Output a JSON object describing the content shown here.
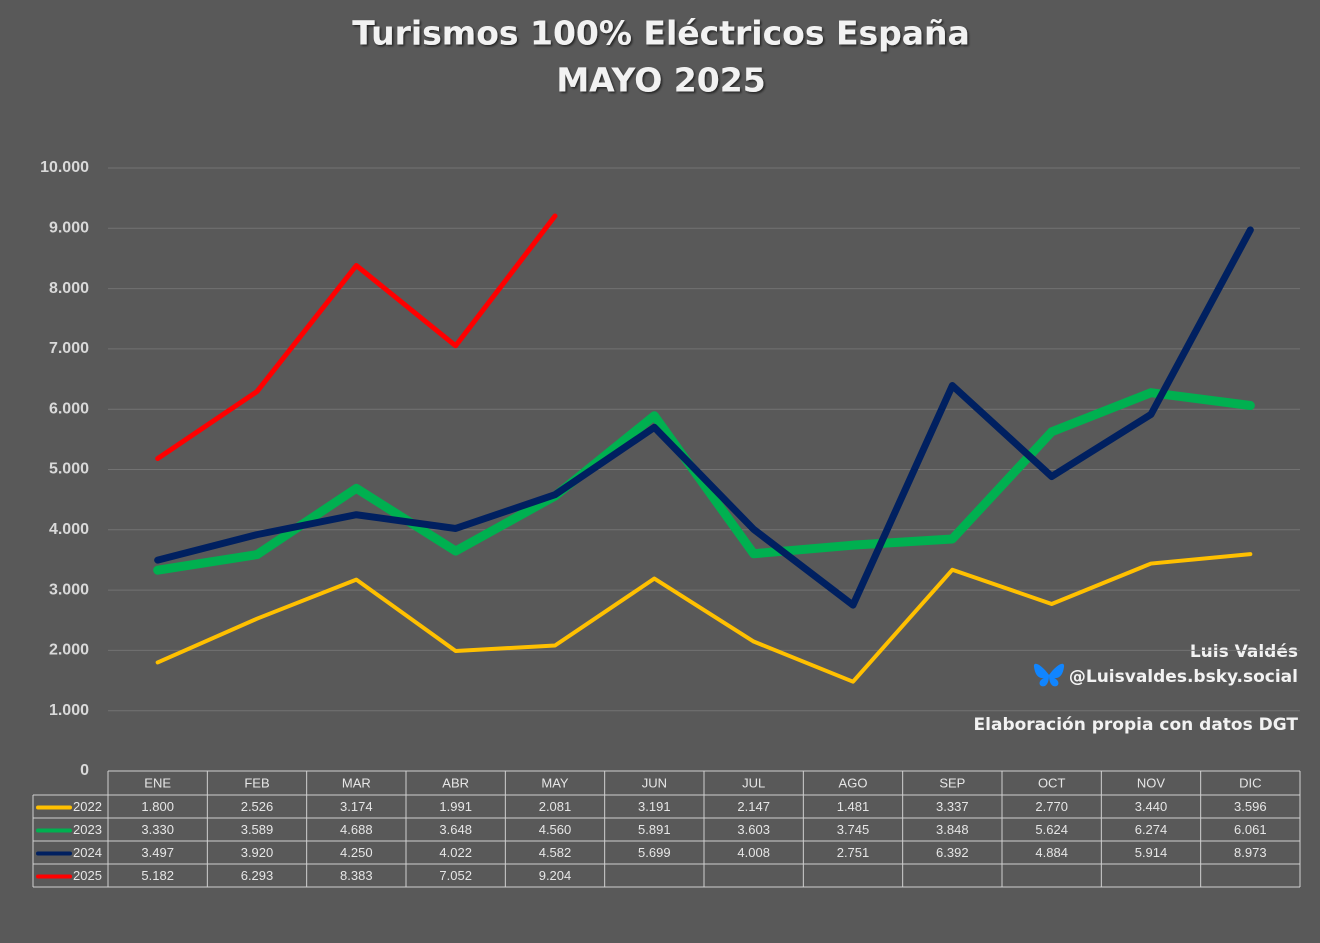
{
  "chart_data": {
    "type": "line",
    "title": "Turismos 100% Eléctricos España",
    "subtitle": "MAYO 2025",
    "categories": [
      "ENE",
      "FEB",
      "MAR",
      "ABR",
      "MAY",
      "JUN",
      "JUL",
      "AGO",
      "SEP",
      "OCT",
      "NOV",
      "DIC"
    ],
    "series": [
      {
        "name": "2022",
        "color": "#ffc000",
        "values": [
          1800,
          2526,
          3174,
          1991,
          2081,
          3191,
          2147,
          1481,
          3337,
          2770,
          3440,
          3596
        ],
        "value_labels": [
          "1.800",
          "2.526",
          "3.174",
          "1.991",
          "2.081",
          "3.191",
          "2.147",
          "1.481",
          "3.337",
          "2.770",
          "3.440",
          "3.596"
        ]
      },
      {
        "name": "2023",
        "color": "#00b050",
        "values": [
          3330,
          3589,
          4688,
          3648,
          4560,
          5891,
          3603,
          3745,
          3848,
          5624,
          6274,
          6061
        ],
        "value_labels": [
          "3.330",
          "3.589",
          "4.688",
          "3.648",
          "4.560",
          "5.891",
          "3.603",
          "3.745",
          "3.848",
          "5.624",
          "6.274",
          "6.061"
        ]
      },
      {
        "name": "2024",
        "color": "#002060",
        "values": [
          3497,
          3920,
          4250,
          4022,
          4582,
          5699,
          4008,
          2751,
          6392,
          4884,
          5914,
          8973
        ],
        "value_labels": [
          "3.497",
          "3.920",
          "4.250",
          "4.022",
          "4.582",
          "5.699",
          "4.008",
          "2.751",
          "6.392",
          "4.884",
          "5.914",
          "8.973"
        ]
      },
      {
        "name": "2025",
        "color": "#ff0000",
        "values": [
          5182,
          6293,
          8383,
          7052,
          9204,
          null,
          null,
          null,
          null,
          null,
          null,
          null
        ],
        "value_labels": [
          "5.182",
          "6.293",
          "8.383",
          "7.052",
          "9.204",
          null,
          null,
          null,
          null,
          null,
          null,
          null
        ]
      }
    ],
    "ylim": [
      0,
      10000
    ],
    "yticks": [
      0,
      {
        "value": 1000,
        "label": "1.000"
      },
      {
        "value": 2000,
        "label": "2.000"
      },
      {
        "value": 3000,
        "label": "3.000"
      },
      {
        "value": 4000,
        "label": "4.000"
      },
      {
        "value": 5000,
        "label": "5.000"
      },
      {
        "value": 6000,
        "label": "6.000"
      },
      {
        "value": 7000,
        "label": "7.000"
      },
      {
        "value": 8000,
        "label": "8.000"
      },
      {
        "value": 9000,
        "label": "9.000"
      },
      {
        "value": 10000,
        "label": "10.000"
      }
    ],
    "grid": true,
    "annotations": [
      "Luis Valdés",
      "@Luisvaldes.bsky.social",
      "Elaboración propia con datos DGT"
    ]
  }
}
